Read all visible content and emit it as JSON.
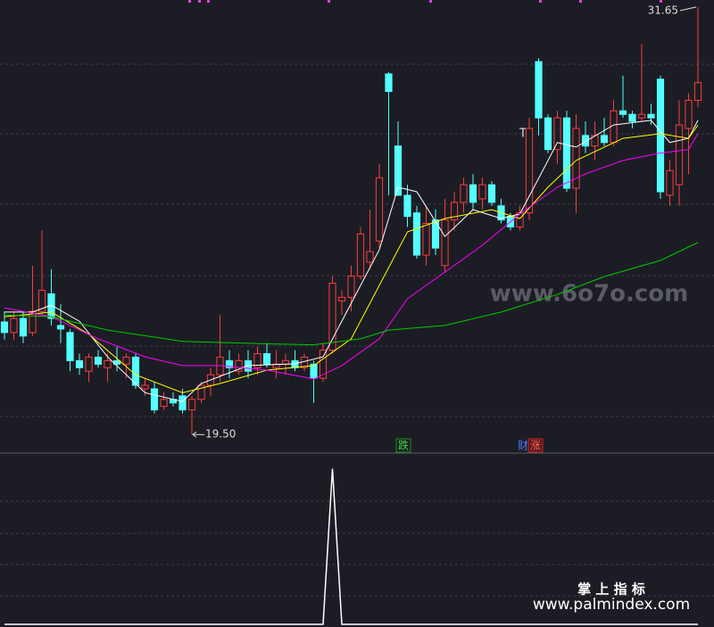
{
  "chart_data": {
    "type": "candlestick",
    "ylim": [
      19.05,
      31.85
    ],
    "up_color": "#ff3c3c",
    "down_color": "#54ffff",
    "candles": [
      [
        22.7,
        23.0,
        22.2,
        22.4
      ],
      [
        22.4,
        23.0,
        22.2,
        22.8
      ],
      [
        22.8,
        23.0,
        22.1,
        22.3
      ],
      [
        22.4,
        24.3,
        22.3,
        23.0
      ],
      [
        23.0,
        25.3,
        22.9,
        23.6
      ],
      [
        23.5,
        24.2,
        22.6,
        22.8
      ],
      [
        22.6,
        23.2,
        22.1,
        22.5
      ],
      [
        22.4,
        22.5,
        21.3,
        21.6
      ],
      [
        21.6,
        21.8,
        21.2,
        21.4
      ],
      [
        21.3,
        21.8,
        21.0,
        21.7
      ],
      [
        21.7,
        21.9,
        21.4,
        21.5
      ],
      [
        21.4,
        21.8,
        21.0,
        21.6
      ],
      [
        21.6,
        22.0,
        21.3,
        21.5
      ],
      [
        21.5,
        21.8,
        21.1,
        21.7
      ],
      [
        21.7,
        21.8,
        20.8,
        20.9
      ],
      [
        20.8,
        21.1,
        20.6,
        20.9
      ],
      [
        20.8,
        21.0,
        20.1,
        20.2
      ],
      [
        20.3,
        20.7,
        20.2,
        20.5
      ],
      [
        20.5,
        20.7,
        20.3,
        20.4
      ],
      [
        20.6,
        20.8,
        20.1,
        20.2
      ],
      [
        20.2,
        20.6,
        19.5,
        20.5
      ],
      [
        20.5,
        21.0,
        20.4,
        20.9
      ],
      [
        20.9,
        21.4,
        20.6,
        21.2
      ],
      [
        21.2,
        22.9,
        21.0,
        21.7
      ],
      [
        21.6,
        21.9,
        21.1,
        21.4
      ],
      [
        21.3,
        21.8,
        21.2,
        21.6
      ],
      [
        21.6,
        21.9,
        21.1,
        21.3
      ],
      [
        21.4,
        22.0,
        21.2,
        21.8
      ],
      [
        21.8,
        22.1,
        21.4,
        21.5
      ],
      [
        21.4,
        21.9,
        21.1,
        21.5
      ],
      [
        21.5,
        21.8,
        21.2,
        21.6
      ],
      [
        21.6,
        21.9,
        21.3,
        21.4
      ],
      [
        21.4,
        21.8,
        21.3,
        21.7
      ],
      [
        21.5,
        21.6,
        20.4,
        21.1
      ],
      [
        21.1,
        22.1,
        21.0,
        21.9
      ],
      [
        21.9,
        24.0,
        21.8,
        23.8
      ],
      [
        23.3,
        23.6,
        22.9,
        23.4
      ],
      [
        23.4,
        24.3,
        23.0,
        24.0
      ],
      [
        24.0,
        25.4,
        23.9,
        25.2
      ],
      [
        24.4,
        25.9,
        24.2,
        24.7
      ],
      [
        25.0,
        27.2,
        24.8,
        26.8
      ],
      [
        29.75,
        29.8,
        26.3,
        29.25
      ],
      [
        27.7,
        28.4,
        26.3,
        26.3
      ],
      [
        26.3,
        26.6,
        25.4,
        25.7
      ],
      [
        25.8,
        26.0,
        24.5,
        24.6
      ],
      [
        24.6,
        26.0,
        24.3,
        25.5
      ],
      [
        25.6,
        25.9,
        24.6,
        24.8
      ],
      [
        24.3,
        26.2,
        24.1,
        25.6
      ],
      [
        25.6,
        26.4,
        25.3,
        26.1
      ],
      [
        26.1,
        26.8,
        25.8,
        26.6
      ],
      [
        26.6,
        26.9,
        25.9,
        26.1
      ],
      [
        26.2,
        26.8,
        25.9,
        26.6
      ],
      [
        26.6,
        26.7,
        26.0,
        26.1
      ],
      [
        26.0,
        26.2,
        25.5,
        25.6
      ],
      [
        25.7,
        25.8,
        25.3,
        25.4
      ],
      [
        25.4,
        26.0,
        25.3,
        25.8
      ],
      [
        25.8,
        28.5,
        25.6,
        28.2
      ],
      [
        30.1,
        30.2,
        28.0,
        28.5
      ],
      [
        28.5,
        28.6,
        27.5,
        27.6
      ],
      [
        27.6,
        28.7,
        27.2,
        28.5
      ],
      [
        28.5,
        28.7,
        26.4,
        26.5
      ],
      [
        26.5,
        28.6,
        25.8,
        28.2
      ],
      [
        28.0,
        28.4,
        27.5,
        27.7
      ],
      [
        27.7,
        28.4,
        27.3,
        28.0
      ],
      [
        28.0,
        28.5,
        27.7,
        27.8
      ],
      [
        27.8,
        29.0,
        27.7,
        28.7
      ],
      [
        28.7,
        29.7,
        28.5,
        28.6
      ],
      [
        28.6,
        28.7,
        28.2,
        28.4
      ],
      [
        28.5,
        30.6,
        28.4,
        28.6
      ],
      [
        28.6,
        28.9,
        28.3,
        28.5
      ],
      [
        29.6,
        29.7,
        26.2,
        26.4
      ],
      [
        26.3,
        27.3,
        26.0,
        27.0
      ],
      [
        26.6,
        29.0,
        26.0,
        28.3
      ],
      [
        28.2,
        29.2,
        26.9,
        29.0
      ],
      [
        29.0,
        31.65,
        28.8,
        29.5
      ]
    ],
    "lines": [
      {
        "color": "#ffffff",
        "x": [
          0,
          3,
          5,
          8,
          11,
          15,
          19,
          21,
          26,
          31,
          34,
          38,
          40,
          42,
          44,
          47,
          50,
          53,
          55,
          57,
          59,
          61,
          65,
          69,
          71,
          73,
          74
        ],
        "values": [
          22.98,
          22.98,
          23.18,
          22.72,
          21.71,
          20.69,
          20.44,
          20.95,
          21.46,
          21.51,
          21.71,
          23.74,
          24.75,
          26.53,
          26.4,
          25.13,
          25.89,
          25.64,
          25.77,
          26.78,
          27.8,
          27.67,
          28.3,
          28.43,
          27.8,
          27.92,
          28.43
        ]
      },
      {
        "color": "#ffff00",
        "x": [
          0,
          5,
          9,
          14,
          19,
          23,
          28,
          33,
          37,
          40,
          43,
          47,
          52,
          55,
          58,
          61,
          66,
          70,
          73,
          74
        ],
        "values": [
          22.85,
          22.98,
          22.35,
          21.2,
          20.69,
          20.95,
          21.33,
          21.46,
          22.22,
          23.74,
          25.26,
          25.64,
          25.89,
          25.64,
          26.53,
          27.29,
          27.92,
          28.05,
          27.92,
          28.3
        ]
      },
      {
        "color": "#ff00ff",
        "x": [
          0,
          5,
          10,
          15,
          19,
          23,
          28,
          33,
          36,
          40,
          43,
          47,
          51,
          55,
          59,
          62,
          66,
          70,
          73,
          74
        ],
        "values": [
          23.1,
          22.85,
          22.22,
          21.71,
          21.46,
          21.46,
          21.33,
          21.08,
          21.46,
          22.22,
          23.36,
          24.12,
          24.88,
          25.77,
          26.53,
          26.91,
          27.29,
          27.5,
          27.6,
          28.05
        ]
      },
      {
        "color": "#00cc00",
        "x": [
          0,
          5,
          11,
          19,
          28,
          33,
          38,
          41,
          47,
          53,
          59,
          64,
          70,
          74
        ],
        "values": [
          22.9,
          22.85,
          22.47,
          22.15,
          22.08,
          22.05,
          22.22,
          22.47,
          22.6,
          22.98,
          23.48,
          23.99,
          24.45,
          24.96
        ]
      }
    ],
    "high_label": 31.65,
    "low_label": {
      "value": 19.5,
      "label": "19.50"
    },
    "indicator": {
      "type": "line",
      "color": "#ffffff",
      "ylim": [
        0,
        1.1
      ],
      "x": [
        0,
        34,
        35,
        36,
        74
      ],
      "values": [
        0,
        0,
        1,
        0,
        0
      ]
    }
  },
  "annotations": {
    "t_mark": "T",
    "fall": "跌",
    "cai": "财",
    "rise": "涨",
    "watermark": "www.6o7o.com",
    "footer_title": "掌 上 指 标",
    "footer_url": "www.palmindex.com"
  }
}
